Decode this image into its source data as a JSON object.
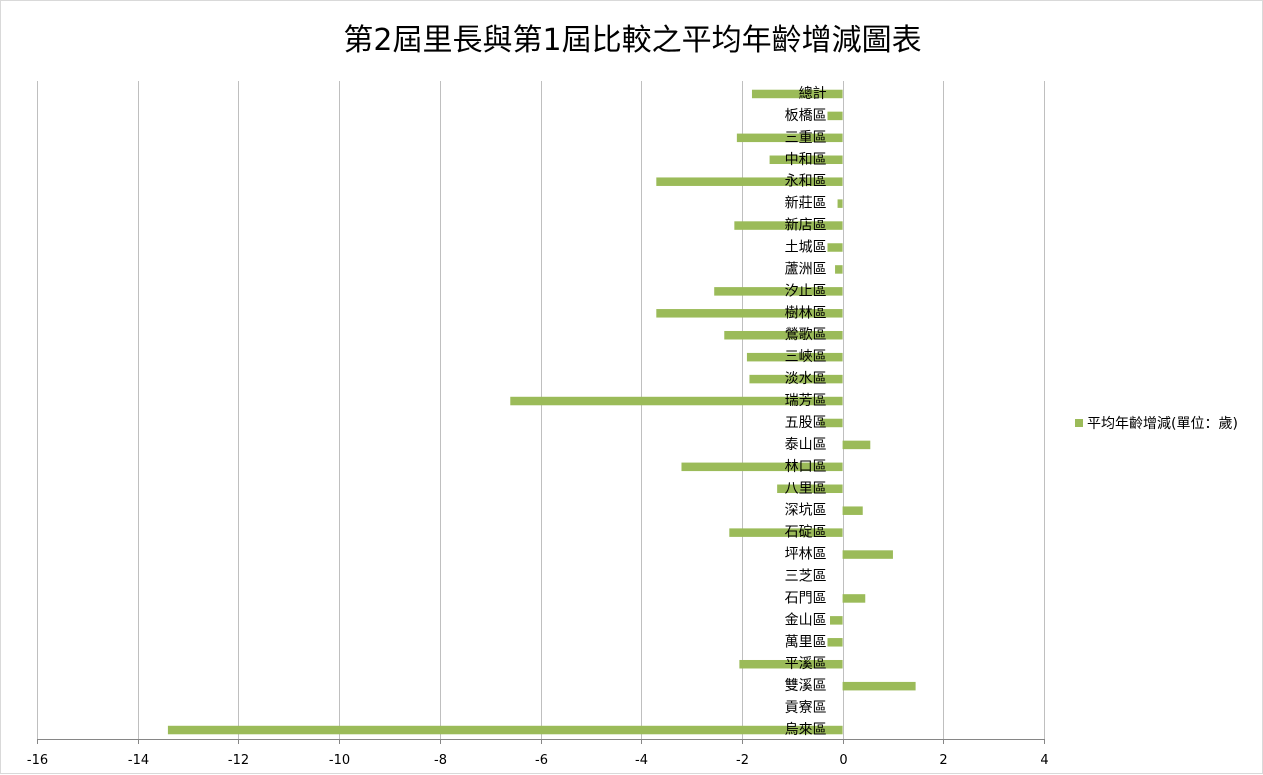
{
  "chart_data": {
    "type": "bar",
    "orientation": "horizontal",
    "title": "第2屆里長與第1屆比較之平均年齡增減圖表",
    "xlim": [
      -16,
      4
    ],
    "x_ticks": [
      "-16",
      "-14",
      "-12",
      "-10",
      "-8",
      "-6",
      "-4",
      "-2",
      "0",
      "2",
      "4"
    ],
    "x_tick_values": [
      -16,
      -14,
      -12,
      -10,
      -8,
      -6,
      -4,
      -2,
      0,
      2,
      4
    ],
    "grid": "vertical",
    "legend_position": "right",
    "bar_color": "#9bbb59",
    "categories": [
      "總計",
      "板橋區",
      "三重區",
      "中和區",
      "永和區",
      "新莊區",
      "新店區",
      "土城區",
      "蘆洲區",
      "汐止區",
      "樹林區",
      "鶯歌區",
      "三峽區",
      "淡水區",
      "瑞芳區",
      "五股區",
      "泰山區",
      "林口區",
      "八里區",
      "深坑區",
      "石碇區",
      "坪林區",
      "三芝區",
      "石門區",
      "金山區",
      "萬里區",
      "平溪區",
      "雙溪區",
      "貢寮區",
      "烏來區"
    ],
    "series": [
      {
        "name": "平均年齡增減(單位：歲)",
        "values": [
          -1.8,
          -0.3,
          -2.1,
          -1.45,
          -3.7,
          -0.1,
          -2.15,
          -0.3,
          -0.15,
          -2.55,
          -3.7,
          -2.35,
          -1.9,
          -1.85,
          -6.6,
          -0.45,
          0.55,
          -3.2,
          -1.3,
          0.4,
          -2.25,
          1.0,
          0.0,
          0.45,
          -0.25,
          -0.3,
          -2.05,
          1.45,
          0.0,
          -13.4
        ]
      }
    ]
  }
}
